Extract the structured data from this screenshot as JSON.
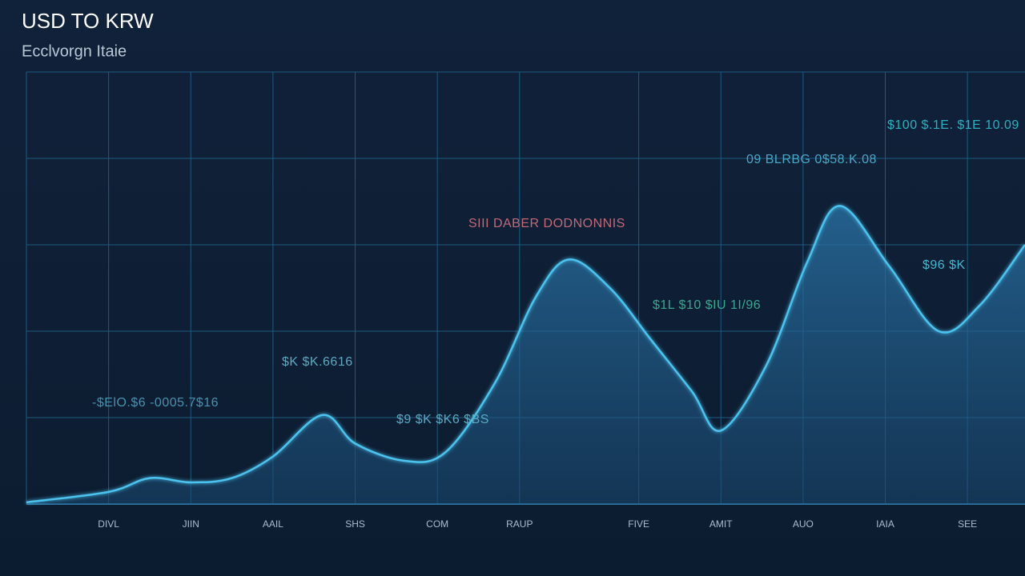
{
  "chart_data": {
    "type": "area",
    "title": "USD TO KRW",
    "subtitle": "Ecclvorgn Itaie",
    "x": [
      0,
      1,
      1.5,
      2,
      2.5,
      3,
      3.6,
      4,
      4.6,
      5.1,
      5.7,
      6.2,
      6.6,
      7.1,
      7.6,
      8.1,
      8.45,
      9,
      9.5,
      9.9,
      10.5,
      11.1,
      11.6,
      12.15
    ],
    "values": [
      0.02,
      0.14,
      0.3,
      0.25,
      0.3,
      0.55,
      1.03,
      0.7,
      0.5,
      0.6,
      1.4,
      2.4,
      2.83,
      2.5,
      1.9,
      1.3,
      0.85,
      1.6,
      2.8,
      3.45,
      2.75,
      2.0,
      2.3,
      3.0
    ],
    "color": "#4cc3ee",
    "xlim": [
      0,
      12.15
    ],
    "ylim": [
      0,
      5
    ],
    "xticks": [
      {
        "value": 1,
        "label": "DIVL"
      },
      {
        "value": 2,
        "label": "JIIN"
      },
      {
        "value": 3,
        "label": "AAIL"
      },
      {
        "value": 4,
        "label": "SHS"
      },
      {
        "value": 5,
        "label": "COM"
      },
      {
        "value": 6,
        "label": "RAUP"
      },
      {
        "value": 7.45,
        "label": "FIVE"
      },
      {
        "value": 8.45,
        "label": "AMIT"
      },
      {
        "value": 9.45,
        "label": "AUO"
      },
      {
        "value": 10.45,
        "label": "IAIA"
      },
      {
        "value": 11.45,
        "label": "SEE"
      }
    ],
    "grid": true,
    "annotations": [
      "$100 $.1E. $1E 10.09",
      "09 BLRBG   0$58.K.08",
      "SIII DABER   DODNONNIS",
      "$96 $K",
      "$1L $10 $IU 1I/96",
      "$K $K.6616",
      "-$ElO.$6   -0005.7$16",
      "$9 $K $K6 $BS"
    ]
  }
}
